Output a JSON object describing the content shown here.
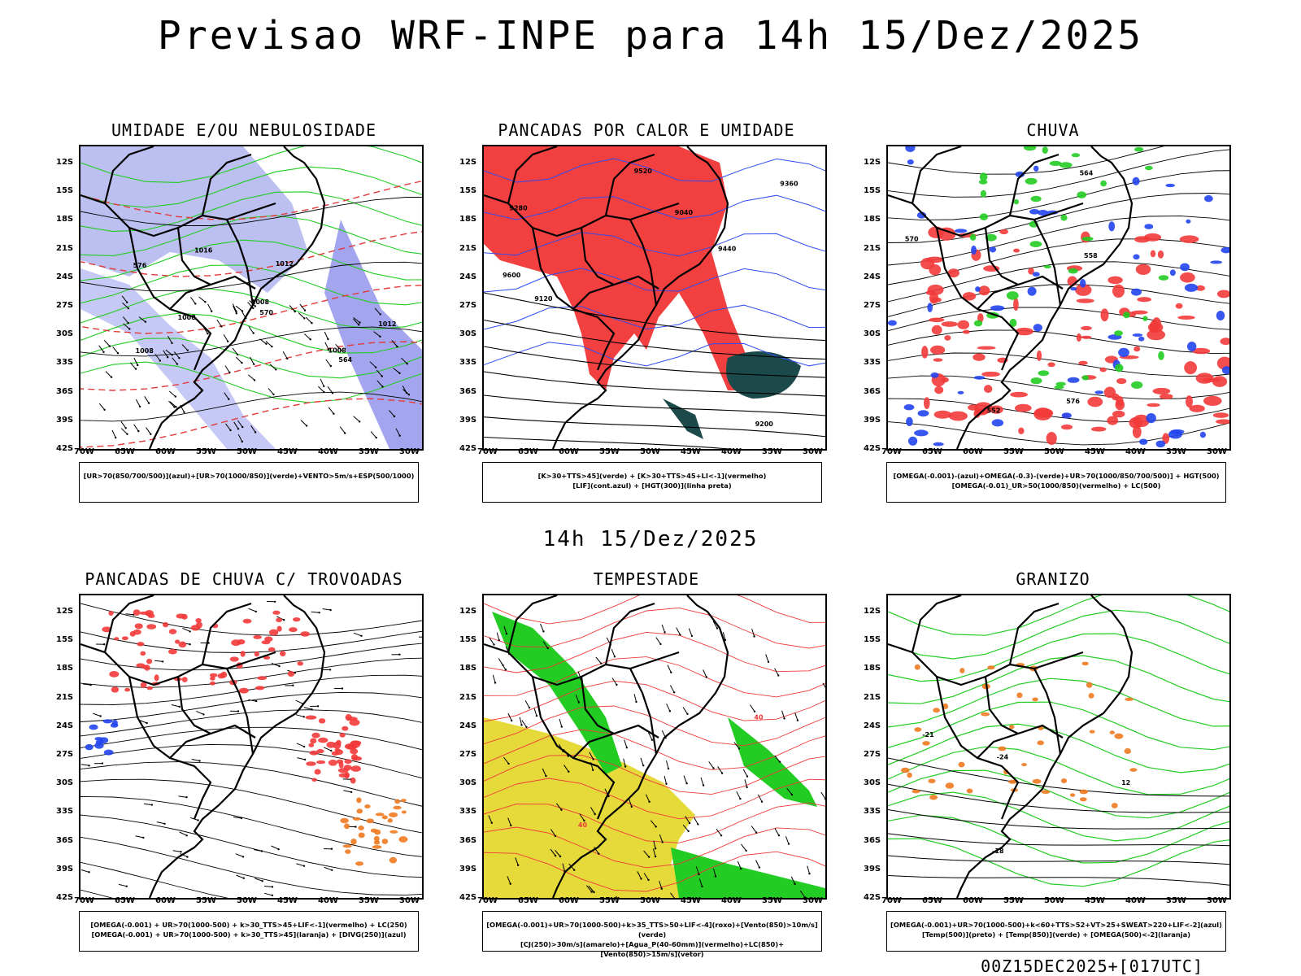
{
  "header": {
    "title": "Previsao WRF-INPE  para 14h 15/Dez/2025"
  },
  "mid_title": "14h 15/Dez/2025",
  "footer": "00Z15DEC2025+[017UTC]",
  "axes": {
    "lat_labels": [
      "12S",
      "15S",
      "18S",
      "21S",
      "24S",
      "27S",
      "30S",
      "33S",
      "36S",
      "39S",
      "42S"
    ],
    "lon_labels": [
      "70W",
      "65W",
      "60W",
      "55W",
      "50W",
      "45W",
      "40W",
      "35W",
      "30W"
    ]
  },
  "panels": [
    {
      "title": "UMIDADE E/OU NEBULOSIDADE",
      "legend": [
        "[UR>70(850/700/500)](azul)+[UR>70(1000/850)](verde)+VENTO>5m/s+ESP(500/1000)"
      ],
      "contour_labels": [
        "1008",
        "1008",
        "1008",
        "1012",
        "1016",
        "570",
        "576",
        "564",
        "1008",
        "1012"
      ]
    },
    {
      "title": "PANCADAS POR CALOR E UMIDADE",
      "legend": [
        "[K>30+TTS>45](verde) + [K>30+TTS>45+LI<-1](vermelho)",
        "[LIF](cont.azul) + [HGT(300)](linha preta)"
      ],
      "contour_labels": [
        "9600",
        "9520",
        "9440",
        "9360",
        "9280",
        "9200",
        "9120",
        "9040"
      ]
    },
    {
      "title": "CHUVA",
      "legend": [
        "[OMEGA(-0.001)-(azul)+OMEGA(-0.3)-(verde)+UR>70(1000/850/700/500)] + HGT(500)",
        "[OMEGA(-0.01)_UR>50(1000/850)(vermelho) + LC(500)"
      ],
      "contour_labels": [
        "576",
        "570",
        "564",
        "558",
        "552"
      ]
    },
    {
      "title": "PANCADAS DE CHUVA C/ TROVOADAS",
      "legend": [
        "[OMEGA(-0.001) + UR>70(1000-500) + k>30_TTS>45+LIF<-1](vermelho) + LC(250)",
        "[OMEGA(-0.001) + UR>70(1000-500) + k>30_TTS>45](laranja) + [DIVG(250)](azul)"
      ],
      "contour_labels": []
    },
    {
      "title": "TEMPESTADE",
      "legend": [
        "[OMEGA(-0.001)+UR>70(1000-500)+k>35_TTS>50+LIF<-4](roxo)+[Vento(850)>10m/s](verde)",
        "[CJ(250)>30m/s](amarelo)+[Agua_P(40-60mm)](vermelho)+LC(850)+[Vento(850)>15m/s](vetor)"
      ],
      "contour_labels": [
        "40",
        "40"
      ]
    },
    {
      "title": "GRANIZO",
      "legend": [
        "[OMEGA(-0.001)+UR>70(1000-500)+k<60+TTS>52+VT>25+SWEAT>220+LIF<-2](azul)",
        "[Temp(500)](preto) + [Temp(850)](verde) + [OMEGA(500)<-2](laranja)"
      ],
      "contour_labels": [
        "-18",
        "-21",
        "-24",
        "12"
      ]
    }
  ]
}
